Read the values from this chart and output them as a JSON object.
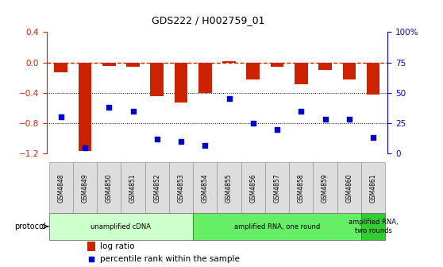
{
  "title": "GDS222 / H002759_01",
  "samples": [
    "GSM4848",
    "GSM4849",
    "GSM4850",
    "GSM4851",
    "GSM4852",
    "GSM4853",
    "GSM4854",
    "GSM4855",
    "GSM4856",
    "GSM4857",
    "GSM4858",
    "GSM4859",
    "GSM4860",
    "GSM4861"
  ],
  "log_ratio": [
    -0.13,
    -1.17,
    -0.05,
    -0.06,
    -0.44,
    -0.53,
    -0.4,
    0.02,
    -0.22,
    -0.06,
    -0.29,
    -0.1,
    -0.22,
    -0.42
  ],
  "percentile_rank": [
    30,
    5,
    38,
    35,
    12,
    10,
    7,
    45,
    25,
    20,
    35,
    28,
    28,
    13
  ],
  "ylim_left": [
    -1.2,
    0.4
  ],
  "ylim_right": [
    0,
    100
  ],
  "yticks_left": [
    -1.2,
    -0.8,
    -0.4,
    0.0,
    0.4
  ],
  "yticks_right": [
    0,
    25,
    50,
    75,
    100
  ],
  "ytick_labels_right": [
    "0",
    "25",
    "50",
    "75",
    "100%"
  ],
  "bar_color": "#CC2200",
  "dot_color": "#0000CC",
  "hline_color": "#CC2200",
  "grid_color": "#000000",
  "protocol_groups": [
    {
      "label": "unamplified cDNA",
      "start": 0,
      "end": 5,
      "color": "#CCFFCC"
    },
    {
      "label": "amplified RNA, one round",
      "start": 6,
      "end": 12,
      "color": "#66EE66"
    },
    {
      "label": "amplified RNA,\ntwo rounds",
      "start": 13,
      "end": 13,
      "color": "#33CC33"
    }
  ],
  "legend_items": [
    {
      "color": "#CC2200",
      "label": "log ratio"
    },
    {
      "color": "#0000CC",
      "label": "percentile rank within the sample"
    }
  ],
  "background_color": "#FFFFFF"
}
